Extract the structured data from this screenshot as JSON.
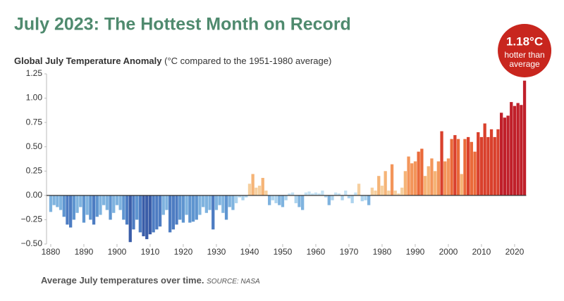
{
  "chart_data": {
    "type": "bar",
    "title": "July 2023: The Hottest Month on Record",
    "subtitle": "Global July Temperature Anomaly",
    "y_label": "(°C compared to the 1951-1980 average)",
    "annotation": {
      "value": "1.18°C",
      "lines": [
        "hotter than",
        "average"
      ]
    },
    "caption": "Average July temperatures over time.",
    "source": "SOURCE: NASA",
    "x": [
      1880,
      1881,
      1882,
      1883,
      1884,
      1885,
      1886,
      1887,
      1888,
      1889,
      1890,
      1891,
      1892,
      1893,
      1894,
      1895,
      1896,
      1897,
      1898,
      1899,
      1900,
      1901,
      1902,
      1903,
      1904,
      1905,
      1906,
      1907,
      1908,
      1909,
      1910,
      1911,
      1912,
      1913,
      1914,
      1915,
      1916,
      1917,
      1918,
      1919,
      1920,
      1921,
      1922,
      1923,
      1924,
      1925,
      1926,
      1927,
      1928,
      1929,
      1930,
      1931,
      1932,
      1933,
      1934,
      1935,
      1936,
      1937,
      1938,
      1939,
      1940,
      1941,
      1942,
      1943,
      1944,
      1945,
      1946,
      1947,
      1948,
      1949,
      1950,
      1951,
      1952,
      1953,
      1954,
      1955,
      1956,
      1957,
      1958,
      1959,
      1960,
      1961,
      1962,
      1963,
      1964,
      1965,
      1966,
      1967,
      1968,
      1969,
      1970,
      1971,
      1972,
      1973,
      1974,
      1975,
      1976,
      1977,
      1978,
      1979,
      1980,
      1981,
      1982,
      1983,
      1984,
      1985,
      1986,
      1987,
      1988,
      1989,
      1990,
      1991,
      1992,
      1993,
      1994,
      1995,
      1996,
      1997,
      1998,
      1999,
      2000,
      2001,
      2002,
      2003,
      2004,
      2005,
      2006,
      2007,
      2008,
      2009,
      2010,
      2011,
      2012,
      2013,
      2014,
      2015,
      2016,
      2017,
      2018,
      2019,
      2020,
      2021,
      2022,
      2023
    ],
    "values": [
      -0.17,
      -0.1,
      -0.12,
      -0.15,
      -0.22,
      -0.3,
      -0.33,
      -0.25,
      -0.18,
      -0.12,
      -0.28,
      -0.2,
      -0.25,
      -0.3,
      -0.22,
      -0.2,
      -0.1,
      -0.15,
      -0.25,
      -0.18,
      -0.1,
      -0.15,
      -0.25,
      -0.3,
      -0.48,
      -0.35,
      -0.25,
      -0.38,
      -0.42,
      -0.45,
      -0.4,
      -0.38,
      -0.35,
      -0.32,
      -0.2,
      -0.15,
      -0.38,
      -0.35,
      -0.3,
      -0.25,
      -0.28,
      -0.2,
      -0.28,
      -0.27,
      -0.25,
      -0.2,
      -0.12,
      -0.18,
      -0.15,
      -0.35,
      -0.15,
      -0.1,
      -0.18,
      -0.25,
      -0.12,
      -0.15,
      -0.08,
      -0.02,
      -0.05,
      -0.02,
      0.12,
      0.22,
      0.08,
      0.1,
      0.18,
      0.05,
      -0.1,
      -0.05,
      -0.08,
      -0.1,
      -0.12,
      -0.05,
      0.02,
      0.03,
      -0.08,
      -0.12,
      -0.15,
      0.03,
      0.04,
      0.02,
      0.03,
      0.02,
      0.05,
      -0.02,
      -0.1,
      -0.05,
      0.03,
      0.02,
      -0.05,
      0.05,
      -0.03,
      -0.08,
      0.03,
      0.12,
      -0.06,
      -0.05,
      -0.1,
      0.08,
      0.05,
      0.2,
      0.1,
      0.25,
      0.05,
      0.32,
      0.05,
      0.02,
      0.08,
      0.25,
      0.4,
      0.33,
      0.35,
      0.45,
      0.48,
      0.2,
      0.3,
      0.38,
      0.25,
      0.35,
      0.66,
      0.35,
      0.38,
      0.58,
      0.62,
      0.58,
      0.22,
      0.58,
      0.6,
      0.55,
      0.45,
      0.65,
      0.6,
      0.74,
      0.6,
      0.68,
      0.6,
      0.68,
      0.85,
      0.8,
      0.82,
      0.96,
      0.92,
      0.95,
      0.93,
      1.18
    ],
    "colors": [
      "#7fb3df",
      "#7fb3df",
      "#7fb3df",
      "#7fb3df",
      "#5f95d0",
      "#4d7cc2",
      "#4d7cc2",
      "#5f95d0",
      "#7fb3df",
      "#7fb3df",
      "#5f95d0",
      "#7fb3df",
      "#5f95d0",
      "#4d7cc2",
      "#5f95d0",
      "#7fb3df",
      "#7fb3df",
      "#7fb3df",
      "#5f95d0",
      "#7fb3df",
      "#7fb3df",
      "#7fb3df",
      "#5f95d0",
      "#4d7cc2",
      "#3a5da8",
      "#4d7cc2",
      "#5f95d0",
      "#4d7cc2",
      "#3a5da8",
      "#3a5da8",
      "#3a5da8",
      "#4d7cc2",
      "#4d7cc2",
      "#4d7cc2",
      "#7fb3df",
      "#7fb3df",
      "#4d7cc2",
      "#4d7cc2",
      "#4d7cc2",
      "#5f95d0",
      "#5f95d0",
      "#7fb3df",
      "#5f95d0",
      "#5f95d0",
      "#5f95d0",
      "#7fb3df",
      "#7fb3df",
      "#7fb3df",
      "#7fb3df",
      "#4d7cc2",
      "#7fb3df",
      "#7fb3df",
      "#7fb3df",
      "#5f95d0",
      "#7fb3df",
      "#7fb3df",
      "#acd3ee",
      "#acd3ee",
      "#acd3ee",
      "#acd3ee",
      "#f6cf9e",
      "#f5b477",
      "#f6cf9e",
      "#f6cf9e",
      "#f5b477",
      "#f6cf9e",
      "#7fb3df",
      "#acd3ee",
      "#acd3ee",
      "#7fb3df",
      "#7fb3df",
      "#acd3ee",
      "#c4e1f3",
      "#c4e1f3",
      "#acd3ee",
      "#7fb3df",
      "#7fb3df",
      "#c4e1f3",
      "#c4e1f3",
      "#c4e1f3",
      "#c4e1f3",
      "#c4e1f3",
      "#c4e1f3",
      "#acd3ee",
      "#7fb3df",
      "#acd3ee",
      "#c4e1f3",
      "#c4e1f3",
      "#acd3ee",
      "#c4e1f3",
      "#acd3ee",
      "#acd3ee",
      "#c4e1f3",
      "#f6cf9e",
      "#acd3ee",
      "#acd3ee",
      "#7fb3df",
      "#f6cf9e",
      "#f6cf9e",
      "#f5b477",
      "#f6cf9e",
      "#f5b477",
      "#f6cf9e",
      "#f3955a",
      "#f6cf9e",
      "#f6cf9e",
      "#f6cf9e",
      "#f5b477",
      "#f3955a",
      "#f3955a",
      "#f3955a",
      "#ea6a3a",
      "#ea6a3a",
      "#f5b477",
      "#f5b477",
      "#f3955a",
      "#f5b477",
      "#f3955a",
      "#d9402c",
      "#f3955a",
      "#f3955a",
      "#ea6a3a",
      "#d9402c",
      "#ea6a3a",
      "#f5b477",
      "#ea6a3a",
      "#d9402c",
      "#ea6a3a",
      "#ea6a3a",
      "#d9402c",
      "#d9402c",
      "#d9402c",
      "#d9402c",
      "#d9402c",
      "#d9402c",
      "#d9402c",
      "#c0202a",
      "#c0202a",
      "#c0202a",
      "#c0202a",
      "#c0202a",
      "#c0202a",
      "#c0202a",
      "#c0202a"
    ],
    "xlim": [
      1879.5,
      2023.5
    ],
    "xticks": [
      1880,
      1890,
      1900,
      1910,
      1920,
      1930,
      1940,
      1950,
      1960,
      1970,
      1980,
      1990,
      2000,
      2010,
      2020
    ],
    "ylim": [
      -0.5,
      1.25
    ],
    "yticks": [
      {
        "value": -0.5,
        "label": "−0.50"
      },
      {
        "value": -0.25,
        "label": "−0.25"
      },
      {
        "value": 0,
        "label": "0.00"
      },
      0.25,
      {
        "value": 0.5,
        "label": "0.50"
      },
      0.75,
      {
        "value": 1,
        "label": "1.00"
      },
      1.25
    ],
    "title_color": "#4f8a6e",
    "annotation_color": "#c8261e"
  }
}
